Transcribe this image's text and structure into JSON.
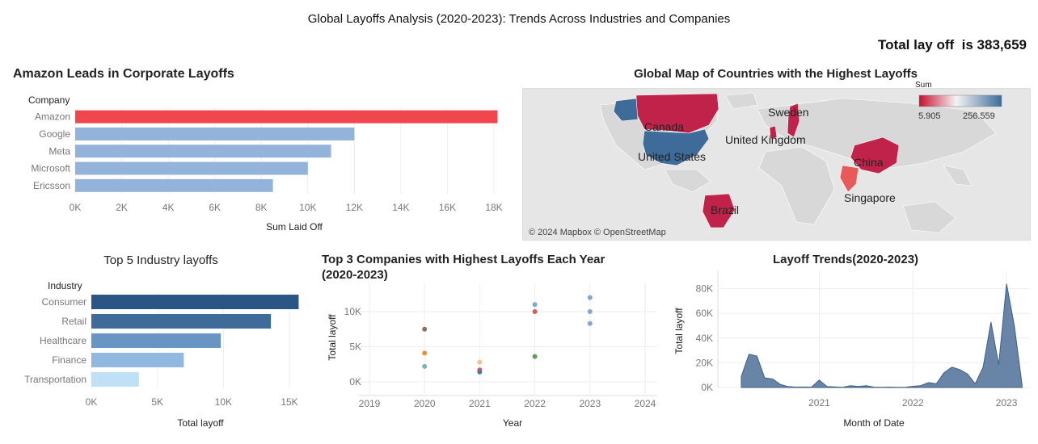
{
  "dashboard": {
    "title": "Global Layoffs Analysis (2020-2023): Trends Across Industries and Companies",
    "kpi_prefix": "Total lay off  is",
    "kpi_value": "383,659"
  },
  "map": {
    "title": "Global Map of Countries with the Highest Layoffs",
    "legend_title": "Sum",
    "legend_min": "5.905",
    "legend_max": "256.559",
    "attribution": "© 2024 Mapbox © OpenStreetMap",
    "labels": [
      "Canada",
      "Sweden",
      "United Kingdom",
      "United States",
      "China",
      "Singapore",
      "Brazil"
    ],
    "colors": {
      "low": "#c8102e",
      "mid": "#f3f3f3",
      "high": "#3e6b9a"
    }
  },
  "chart_data": [
    {
      "type": "bar",
      "orientation": "horizontal",
      "title": "Amazon Leads in Corporate Layoffs",
      "ylabel": "Company",
      "xlabel": "Sum Laid Off",
      "categories": [
        "Amazon",
        "Google",
        "Meta",
        "Microsoft",
        "Ericsson"
      ],
      "values": [
        18150,
        12000,
        11000,
        10000,
        8500
      ],
      "colors": [
        "#f2464e",
        "#94b3da",
        "#94b3da",
        "#94b3da",
        "#94b3da"
      ],
      "xticks": [
        "0K",
        "2K",
        "4K",
        "6K",
        "8K",
        "10K",
        "12K",
        "14K",
        "16K",
        "18K"
      ],
      "xlim": [
        0,
        18000
      ]
    },
    {
      "type": "bar",
      "orientation": "horizontal",
      "title": "Top 5 Industry layoffs",
      "ylabel": "Industry",
      "xlabel": "Total layoff",
      "categories": [
        "Consumer",
        "Retail",
        "Healthcare",
        "Finance",
        "Transportation"
      ],
      "values": [
        15700,
        13600,
        9800,
        7000,
        3600
      ],
      "colors": [
        "#2b5584",
        "#3e6b9a",
        "#6895c4",
        "#91b9e0",
        "#bfe0f5"
      ],
      "xticks": [
        "0K",
        "5K",
        "10K",
        "15K"
      ],
      "xlim": [
        0,
        15000
      ]
    },
    {
      "type": "scatter",
      "title": "Top 3 Companies with Highest Layoffs Each Year (2020-2023)",
      "xlabel": "Year",
      "ylabel": "Total layoff",
      "xticks": [
        "2019",
        "2020",
        "2021",
        "2022",
        "2023",
        "2024"
      ],
      "yticks": [
        "0K",
        "5K",
        "10K"
      ],
      "xlim": [
        2019,
        2024
      ],
      "ylim": [
        0,
        10000
      ],
      "points": [
        {
          "x": 2020,
          "y": 7500,
          "color": "#8b6f5e"
        },
        {
          "x": 2020,
          "y": 4100,
          "color": "#f28e2b"
        },
        {
          "x": 2020,
          "y": 2200,
          "color": "#76b7b2"
        },
        {
          "x": 2021,
          "y": 2800,
          "color": "#ffbe7d"
        },
        {
          "x": 2021,
          "y": 1700,
          "color": "#e15759"
        },
        {
          "x": 2021,
          "y": 1400,
          "color": "#4e79a7"
        },
        {
          "x": 2022,
          "y": 11000,
          "color": "#7ea6d6"
        },
        {
          "x": 2022,
          "y": 10000,
          "color": "#e15759"
        },
        {
          "x": 2022,
          "y": 3600,
          "color": "#59a14f"
        },
        {
          "x": 2023,
          "y": 12000,
          "color": "#7ea6d6"
        },
        {
          "x": 2023,
          "y": 10000,
          "color": "#7ea6d6"
        },
        {
          "x": 2023,
          "y": 8300,
          "color": "#7ea6d6"
        }
      ]
    },
    {
      "type": "area",
      "title": "Layoff Trends(2020-2023)",
      "xlabel": "Month of Date",
      "ylabel": "Total layoff",
      "xticks": [
        "2021",
        "2022",
        "2023"
      ],
      "yticks": [
        "0K",
        "20K",
        "40K",
        "60K",
        "80K"
      ],
      "ylim": [
        0,
        80000
      ],
      "color": "#4e6f98",
      "x": [
        "2020-03",
        "2020-04",
        "2020-05",
        "2020-06",
        "2020-07",
        "2020-08",
        "2020-09",
        "2020-10",
        "2020-11",
        "2020-12",
        "2021-01",
        "2021-02",
        "2021-03",
        "2021-04",
        "2021-05",
        "2021-06",
        "2021-07",
        "2021-08",
        "2021-09",
        "2021-10",
        "2021-11",
        "2021-12",
        "2022-01",
        "2022-02",
        "2022-03",
        "2022-04",
        "2022-05",
        "2022-06",
        "2022-07",
        "2022-08",
        "2022-09",
        "2022-10",
        "2022-11",
        "2022-12",
        "2023-01",
        "2023-02",
        "2023-03"
      ],
      "values": [
        9000,
        27000,
        25500,
        7800,
        7000,
        2500,
        700,
        300,
        400,
        300,
        6000,
        700,
        500,
        200,
        1500,
        800,
        1500,
        300,
        200,
        300,
        200,
        200,
        1000,
        1500,
        4000,
        3000,
        12000,
        16500,
        14500,
        11000,
        3000,
        16500,
        53000,
        18500,
        84000,
        50000,
        2000
      ]
    }
  ]
}
